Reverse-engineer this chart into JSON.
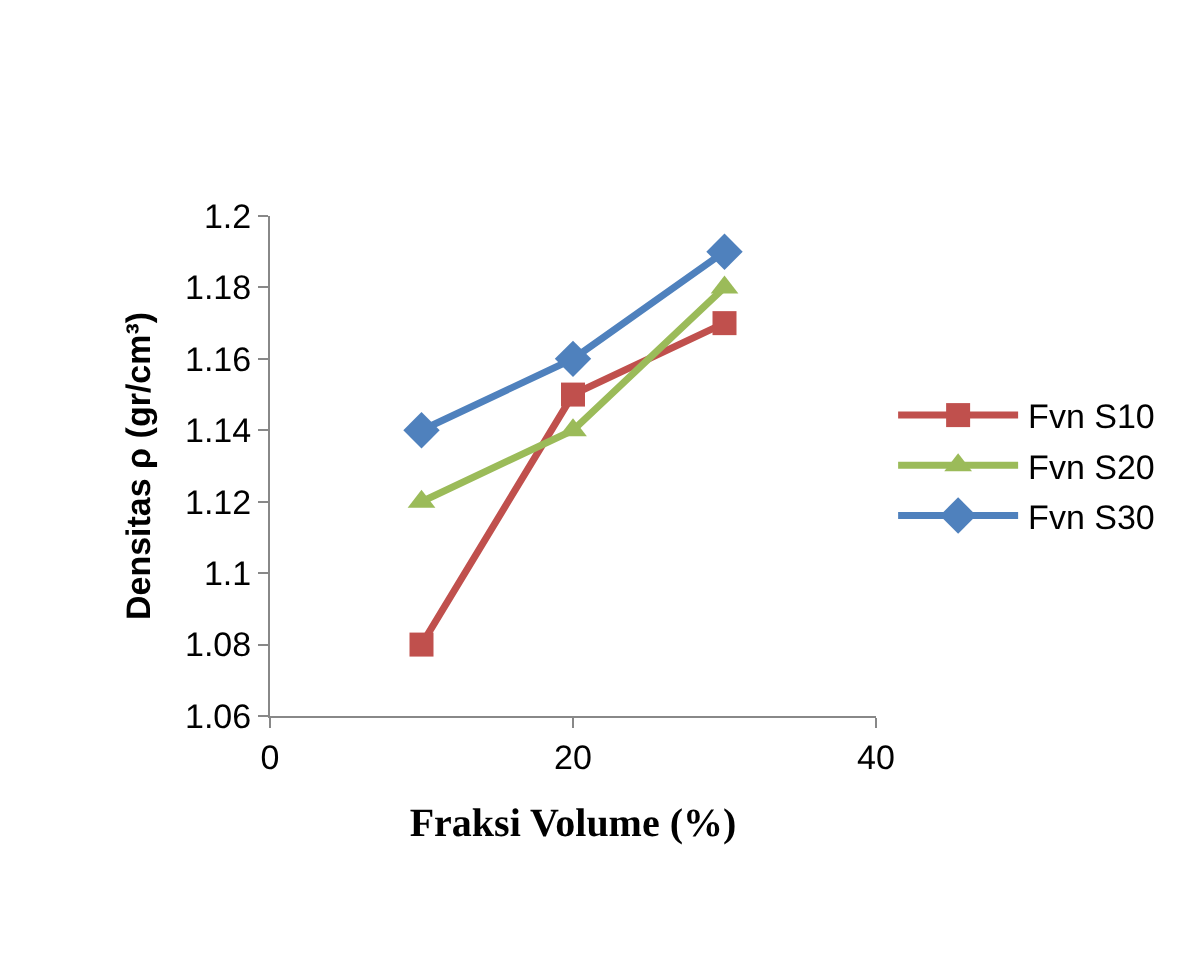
{
  "chart_data": {
    "type": "line",
    "xlabel": "Fraksi Volume (%)",
    "ylabel": "Densitas ρ (gr/cm³)",
    "x": [
      10,
      20,
      30
    ],
    "series": [
      {
        "name": "Fvn S10",
        "color": "#c0504d",
        "marker": "square",
        "values": [
          1.08,
          1.15,
          1.17
        ]
      },
      {
        "name": "Fvn S20",
        "color": "#9bbb59",
        "marker": "triangle",
        "values": [
          1.12,
          1.14,
          1.18
        ]
      },
      {
        "name": "Fvn S30",
        "color": "#4f81bd",
        "marker": "diamond",
        "values": [
          1.14,
          1.16,
          1.19
        ]
      }
    ],
    "xlim": [
      0,
      40
    ],
    "xticks": [
      0,
      20,
      40
    ],
    "ylim": [
      1.06,
      1.2
    ],
    "yticks": [
      1.06,
      1.08,
      1.1,
      1.12,
      1.14,
      1.16,
      1.18,
      1.2
    ],
    "grid": false,
    "legend": "right",
    "line_style": "solid"
  }
}
